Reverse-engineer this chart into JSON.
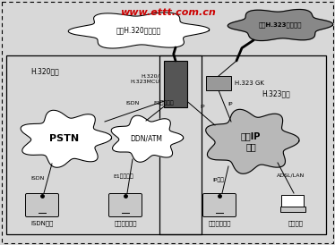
{
  "bg_color": "#d8d8d8",
  "title_watermark": "www.ettt.com.cn",
  "cloud_h320_label": "国家H.320视讯网络",
  "cloud_h323_label": "国家H.323视讯网络",
  "left_box_label": "H.320方式",
  "right_box_label": "H.323方式",
  "mcu_label": "H.320/\nH.323MCU",
  "gk_label": "H.323 GK",
  "pstn_label": "PSTN",
  "ddn_label": "DDN/ATM",
  "broadband_label": "宽带IP\n网络",
  "isdn_conn": "ISDN",
  "e1_conn": "E1数字专线",
  "ip_label1": "IP",
  "ip_label2": "IP",
  "ip_line": "IP专线",
  "adsl_line": "ADSL/LAN",
  "user1_label": "ISDN用户",
  "user2_label": "大型商业用户",
  "user3_label": "大型商业用户",
  "user4_label": "宽带用户",
  "isdn_label": "ISDN",
  "e1_label": "E1数字专线",
  "red_color": "#cc0000",
  "black": "#000000",
  "white": "#ffffff",
  "light_gray": "#c8c8c8",
  "mid_gray": "#999999",
  "dark_gray": "#555555",
  "cloud_gray": "#888888"
}
